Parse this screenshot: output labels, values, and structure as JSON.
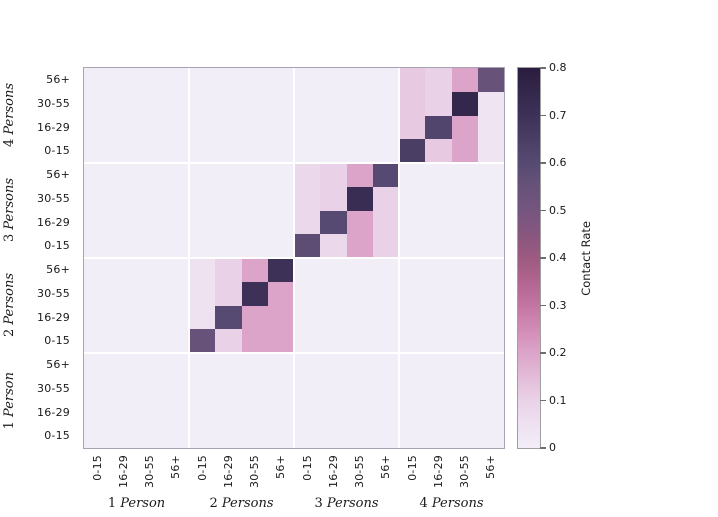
{
  "figure": {
    "background": "#ffffff",
    "axis_text_color": "#1a1a1a"
  },
  "chart_data": {
    "type": "heatmap",
    "title": "",
    "xlabel": "",
    "ylabel": "",
    "group_labels": [
      "1 Person",
      "2 Persons",
      "3 Persons",
      "4 Persons"
    ],
    "age_labels": [
      "0-15",
      "16-29",
      "30-55",
      "56+"
    ],
    "x_axis_order": "columns left to right = 1 Person [0-15,16-29,30-55,56+], 2 Persons [...], 3 Persons [...], 4 Persons [...]",
    "y_axis_order": "rows listed top to bottom = 4 Persons [56+,30-55,16-29,0-15], 3 Persons [...], 2 Persons [...], 1 Person [...]",
    "rows_top_to_bottom": [
      {
        "group": "4 Persons",
        "age": "56+",
        "values": [
          0,
          0,
          0,
          0,
          0,
          0,
          0,
          0,
          0,
          0,
          0,
          0,
          0.12,
          0.1,
          0.2,
          0.55
        ]
      },
      {
        "group": "4 Persons",
        "age": "30-55",
        "values": [
          0,
          0,
          0,
          0,
          0,
          0,
          0,
          0,
          0,
          0,
          0,
          0,
          0.12,
          0.1,
          0.75,
          0.04
        ]
      },
      {
        "group": "4 Persons",
        "age": "16-29",
        "values": [
          0,
          0,
          0,
          0,
          0,
          0,
          0,
          0,
          0,
          0,
          0,
          0,
          0.12,
          0.62,
          0.2,
          0.04
        ]
      },
      {
        "group": "4 Persons",
        "age": "0-15",
        "values": [
          0,
          0,
          0,
          0,
          0,
          0,
          0,
          0,
          0,
          0,
          0,
          0,
          0.65,
          0.12,
          0.2,
          0.04
        ]
      },
      {
        "group": "3 Persons",
        "age": "56+",
        "values": [
          0,
          0,
          0,
          0,
          0,
          0,
          0,
          0,
          0.08,
          0.1,
          0.2,
          0.6,
          0,
          0,
          0,
          0
        ]
      },
      {
        "group": "3 Persons",
        "age": "30-55",
        "values": [
          0,
          0,
          0,
          0,
          0,
          0,
          0,
          0,
          0.08,
          0.1,
          0.72,
          0.1,
          0,
          0,
          0,
          0
        ]
      },
      {
        "group": "3 Persons",
        "age": "16-29",
        "values": [
          0,
          0,
          0,
          0,
          0,
          0,
          0,
          0,
          0.08,
          0.6,
          0.2,
          0.1,
          0,
          0,
          0,
          0
        ]
      },
      {
        "group": "3 Persons",
        "age": "0-15",
        "values": [
          0,
          0,
          0,
          0,
          0,
          0,
          0,
          0,
          0.58,
          0.08,
          0.2,
          0.1,
          0,
          0,
          0,
          0
        ]
      },
      {
        "group": "2 Persons",
        "age": "56+",
        "values": [
          0,
          0,
          0,
          0,
          0.05,
          0.1,
          0.2,
          0.7,
          0,
          0,
          0,
          0,
          0,
          0,
          0,
          0
        ]
      },
      {
        "group": "2 Persons",
        "age": "30-55",
        "values": [
          0,
          0,
          0,
          0,
          0.05,
          0.1,
          0.7,
          0.2,
          0,
          0,
          0,
          0,
          0,
          0,
          0,
          0
        ]
      },
      {
        "group": "2 Persons",
        "age": "16-29",
        "values": [
          0,
          0,
          0,
          0,
          0.05,
          0.6,
          0.2,
          0.2,
          0,
          0,
          0,
          0,
          0,
          0,
          0,
          0
        ]
      },
      {
        "group": "2 Persons",
        "age": "0-15",
        "values": [
          0,
          0,
          0,
          0,
          0.55,
          0.1,
          0.2,
          0.2,
          0,
          0,
          0,
          0,
          0,
          0,
          0,
          0
        ]
      },
      {
        "group": "1 Person",
        "age": "56+",
        "values": [
          0,
          0,
          0,
          0,
          0,
          0,
          0,
          0,
          0,
          0,
          0,
          0,
          0,
          0,
          0,
          0
        ]
      },
      {
        "group": "1 Person",
        "age": "30-55",
        "values": [
          0,
          0,
          0,
          0,
          0,
          0,
          0,
          0,
          0,
          0,
          0,
          0,
          0,
          0,
          0,
          0
        ]
      },
      {
        "group": "1 Person",
        "age": "16-29",
        "values": [
          0,
          0,
          0,
          0,
          0,
          0,
          0,
          0,
          0,
          0,
          0,
          0,
          0,
          0,
          0,
          0
        ]
      },
      {
        "group": "1 Person",
        "age": "0-15",
        "values": [
          0,
          0,
          0,
          0,
          0,
          0,
          0,
          0,
          0,
          0,
          0,
          0,
          0,
          0,
          0,
          0
        ]
      }
    ],
    "colorbar": {
      "label": "Contact Rate",
      "vmin": 0,
      "vmax": 0.8,
      "tick_labels": [
        "0",
        "0.1",
        "0.2",
        "0.3",
        "0.4",
        "0.5",
        "0.6",
        "0.7",
        "0.8"
      ]
    },
    "colormap_stops": [
      [
        0.0,
        "#f2eef8"
      ],
      [
        0.05,
        "#eee1f0"
      ],
      [
        0.1,
        "#e9d2e7"
      ],
      [
        0.15,
        "#e3bbd8"
      ],
      [
        0.2,
        "#dca4c9"
      ],
      [
        0.25,
        "#d28cb5"
      ],
      [
        0.3,
        "#c475a2"
      ],
      [
        0.35,
        "#b16590"
      ],
      [
        0.4,
        "#9d5a80"
      ],
      [
        0.45,
        "#87567f"
      ],
      [
        0.5,
        "#75557f"
      ],
      [
        0.55,
        "#675279"
      ],
      [
        0.6,
        "#564a72"
      ],
      [
        0.65,
        "#4a3e65"
      ],
      [
        0.7,
        "#3d3158"
      ],
      [
        0.75,
        "#33274b"
      ],
      [
        0.8,
        "#2a1d3f"
      ]
    ],
    "grid": {
      "block_separator_color": "#ffffff",
      "spine_color": "#a9a2b0"
    },
    "legend_position": "right-colorbar"
  }
}
